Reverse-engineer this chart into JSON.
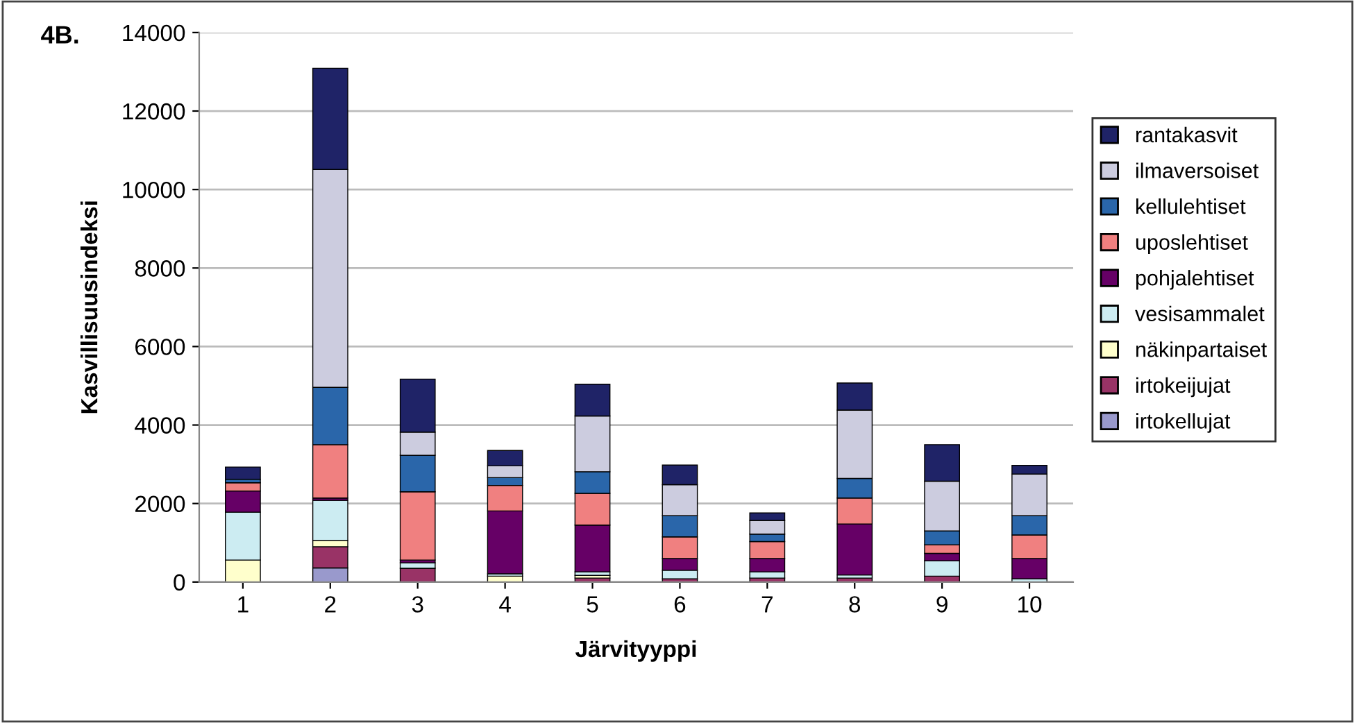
{
  "chart_data": {
    "type": "bar",
    "title": "4B.",
    "xlabel": "Järvityyppi",
    "ylabel": "Kasvillisuusindeksi",
    "categories": [
      "1",
      "2",
      "3",
      "4",
      "5",
      "6",
      "7",
      "8",
      "9",
      "10"
    ],
    "stacked": true,
    "ylim": [
      0,
      14000
    ],
    "yticks": [
      0,
      2000,
      4000,
      6000,
      8000,
      10000,
      12000,
      14000
    ],
    "grid": "y",
    "legend": "right",
    "series": [
      {
        "name": "irtokellujat",
        "color": "#9999cc",
        "values": [
          0,
          360,
          0,
          0,
          0,
          0,
          0,
          0,
          0,
          0
        ]
      },
      {
        "name": "irtokeijujat",
        "color": "#993366",
        "values": [
          0,
          540,
          350,
          0,
          100,
          80,
          100,
          100,
          150,
          null
        ]
      },
      {
        "name": "näkinpartaiset",
        "color": "#ffffcc",
        "values": [
          560,
          160,
          null,
          150,
          70,
          0,
          0,
          0,
          0,
          0
        ]
      },
      {
        "name": "vesisammalet",
        "color": "#ccecf2",
        "values": [
          1220,
          1020,
          140,
          60,
          90,
          220,
          160,
          80,
          390,
          80
        ]
      },
      {
        "name": "pohjalehtiset",
        "color": "#660066",
        "values": [
          540,
          60,
          70,
          1600,
          1190,
          300,
          340,
          1300,
          190,
          520
        ]
      },
      {
        "name": "uposlehtiset",
        "color": "#f08080",
        "values": [
          210,
          1360,
          1740,
          650,
          810,
          550,
          430,
          660,
          220,
          600
        ]
      },
      {
        "name": "kellulehtiset",
        "color": "#2a66aa",
        "values": [
          90,
          1460,
          930,
          200,
          550,
          540,
          190,
          500,
          350,
          490
        ]
      },
      {
        "name": "ilmaversoiset",
        "color": "#ccccdf",
        "values": [
          0,
          5550,
          590,
          300,
          1420,
          790,
          350,
          1740,
          1270,
          1060
        ]
      },
      {
        "name": "rantakasvit",
        "color": "#1f2367",
        "values": [
          310,
          2580,
          1350,
          390,
          810,
          500,
          190,
          690,
          930,
          220
        ]
      }
    ]
  }
}
